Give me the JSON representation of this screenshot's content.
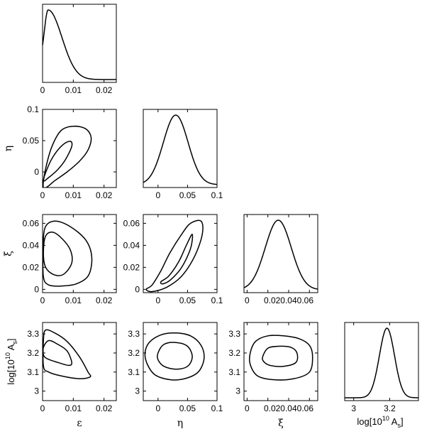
{
  "chart_data": {
    "type": "corner_plot",
    "params": [
      {
        "key": "eps",
        "label": "ε",
        "range": [
          0,
          0.024
        ],
        "ticks": [
          0,
          0.01,
          0.02
        ],
        "ticklabels": [
          "0",
          "0.01",
          "0.02"
        ]
      },
      {
        "key": "eta",
        "label": "η",
        "range": [
          -0.025,
          0.1
        ],
        "ticks": [
          0,
          0.05,
          0.1
        ],
        "ticklabels": [
          "0",
          "0.05",
          "0.1"
        ]
      },
      {
        "key": "xi",
        "label": "ξ",
        "range": [
          -0.003,
          0.068
        ],
        "ticks": [
          0,
          0.02,
          0.04,
          0.06
        ],
        "ticklabels": [
          "0",
          "0.02",
          "0.04",
          "0.06"
        ]
      },
      {
        "key": "lnA",
        "label_main": "log[10",
        "label_sup": "10",
        "label_mid": " A",
        "label_sub": "s",
        "label_end": "]",
        "range": [
          2.95,
          3.36
        ],
        "ticks": [
          3,
          3.1,
          3.2,
          3.3
        ],
        "ticklabels": [
          "3",
          "3.1",
          "3.2",
          "3.3"
        ],
        "xticks": [
          3,
          3.2
        ],
        "xticklabels": [
          "3",
          "3.2"
        ]
      }
    ],
    "x_tick_strings": {
      "xi": "0.020.040.06"
    },
    "marginals": [
      {
        "param": "eps",
        "shape": "skewed",
        "peak": 0.0018,
        "width_left": 0.0012,
        "width_right": 0.0045
      },
      {
        "param": "eta",
        "shape": "gaussian",
        "peak": 0.03,
        "sigma": 0.021
      },
      {
        "param": "xi",
        "shape": "gaussian",
        "peak": 0.03,
        "sigma": 0.0125
      },
      {
        "param": "lnA",
        "shape": "gaussian",
        "peak": 3.185,
        "sigma": 0.042
      }
    ],
    "contours": [
      {
        "x": "eps",
        "y": "eta",
        "levels": [
          [
            [
              0.0003,
              -0.014
            ],
            [
              0.0015,
              0.005
            ],
            [
              0.0035,
              0.025
            ],
            [
              0.0065,
              0.043
            ],
            [
              0.009,
              0.049
            ],
            [
              0.0095,
              0.041
            ],
            [
              0.0075,
              0.02
            ],
            [
              0.005,
              0.004
            ],
            [
              0.002,
              -0.009
            ]
          ],
          [
            [
              0.0002,
              -0.024
            ],
            [
              0.001,
              0.005
            ],
            [
              0.003,
              0.04
            ],
            [
              0.006,
              0.066
            ],
            [
              0.01,
              0.073
            ],
            [
              0.014,
              0.069
            ],
            [
              0.0158,
              0.055
            ],
            [
              0.0148,
              0.035
            ],
            [
              0.012,
              0.017
            ],
            [
              0.008,
              0.0
            ],
            [
              0.004,
              -0.014
            ],
            [
              0.0015,
              -0.024
            ]
          ]
        ]
      },
      {
        "x": "eps",
        "y": "xi",
        "levels": [
          [
            [
              0.0003,
              0.03
            ],
            [
              0.0008,
              0.047
            ],
            [
              0.003,
              0.052
            ],
            [
              0.006,
              0.047
            ],
            [
              0.009,
              0.036
            ],
            [
              0.0095,
              0.024
            ],
            [
              0.007,
              0.014
            ],
            [
              0.004,
              0.013
            ],
            [
              0.0012,
              0.019
            ]
          ],
          [
            [
              0.0002,
              0.035
            ],
            [
              0.0008,
              0.056
            ],
            [
              0.004,
              0.062
            ],
            [
              0.009,
              0.057
            ],
            [
              0.014,
              0.045
            ],
            [
              0.016,
              0.03
            ],
            [
              0.015,
              0.013
            ],
            [
              0.011,
              0.005
            ],
            [
              0.006,
              0.003
            ],
            [
              0.002,
              0.004
            ],
            [
              0.0003,
              0.011
            ]
          ]
        ]
      },
      {
        "x": "eps",
        "y": "lnA",
        "levels": [
          [
            [
              0.0003,
              3.23
            ],
            [
              0.002,
              3.265
            ],
            [
              0.005,
              3.245
            ],
            [
              0.008,
              3.21
            ],
            [
              0.0095,
              3.15
            ],
            [
              0.0085,
              3.135
            ],
            [
              0.005,
              3.15
            ],
            [
              0.0015,
              3.17
            ],
            [
              0.0003,
              3.19
            ]
          ],
          [
            [
              0.0003,
              3.27
            ],
            [
              0.001,
              3.32
            ],
            [
              0.004,
              3.305
            ],
            [
              0.008,
              3.26
            ],
            [
              0.012,
              3.18
            ],
            [
              0.0148,
              3.1
            ],
            [
              0.0155,
              3.075
            ],
            [
              0.012,
              3.065
            ],
            [
              0.006,
              3.08
            ],
            [
              0.002,
              3.1
            ],
            [
              0.0003,
              3.13
            ]
          ]
        ]
      },
      {
        "x": "eta",
        "y": "xi",
        "levels": [
          [
            [
              0.005,
              0.007
            ],
            [
              0.018,
              0.012
            ],
            [
              0.035,
              0.025
            ],
            [
              0.048,
              0.04
            ],
            [
              0.058,
              0.05
            ],
            [
              0.055,
              0.037
            ],
            [
              0.04,
              0.02
            ],
            [
              0.022,
              0.009
            ],
            [
              0.008,
              0.005
            ]
          ],
          [
            [
              -0.02,
              0.0
            ],
            [
              -0.01,
              0.004
            ],
            [
              0.005,
              0.017
            ],
            [
              0.02,
              0.033
            ],
            [
              0.04,
              0.05
            ],
            [
              0.055,
              0.06
            ],
            [
              0.073,
              0.062
            ],
            [
              0.075,
              0.05
            ],
            [
              0.062,
              0.03
            ],
            [
              0.04,
              0.012
            ],
            [
              0.015,
              0.002
            ],
            [
              -0.01,
              -0.002
            ]
          ]
        ]
      },
      {
        "x": "eta",
        "y": "lnA",
        "levels": [
          [
            [
              0.0,
              3.2
            ],
            [
              0.01,
              3.245
            ],
            [
              0.03,
              3.255
            ],
            [
              0.05,
              3.235
            ],
            [
              0.058,
              3.18
            ],
            [
              0.05,
              3.13
            ],
            [
              0.03,
              3.115
            ],
            [
              0.01,
              3.13
            ],
            [
              0.0,
              3.165
            ]
          ],
          [
            [
              -0.022,
              3.2
            ],
            [
              -0.015,
              3.255
            ],
            [
              0.005,
              3.295
            ],
            [
              0.03,
              3.305
            ],
            [
              0.055,
              3.29
            ],
            [
              0.073,
              3.24
            ],
            [
              0.078,
              3.17
            ],
            [
              0.068,
              3.1
            ],
            [
              0.045,
              3.065
            ],
            [
              0.02,
              3.06
            ],
            [
              -0.005,
              3.085
            ],
            [
              -0.018,
              3.14
            ]
          ]
        ]
      },
      {
        "x": "xi",
        "y": "lnA",
        "levels": [
          [
            [
              0.015,
              3.18
            ],
            [
              0.02,
              3.225
            ],
            [
              0.03,
              3.235
            ],
            [
              0.042,
              3.23
            ],
            [
              0.048,
              3.2
            ],
            [
              0.047,
              3.15
            ],
            [
              0.035,
              3.13
            ],
            [
              0.022,
              3.135
            ],
            [
              0.016,
              3.155
            ]
          ],
          [
            [
              0.003,
              3.2
            ],
            [
              0.008,
              3.26
            ],
            [
              0.02,
              3.29
            ],
            [
              0.035,
              3.29
            ],
            [
              0.05,
              3.275
            ],
            [
              0.06,
              3.24
            ],
            [
              0.063,
              3.18
            ],
            [
              0.06,
              3.1
            ],
            [
              0.045,
              3.065
            ],
            [
              0.025,
              3.06
            ],
            [
              0.01,
              3.08
            ],
            [
              0.003,
              3.14
            ]
          ]
        ]
      }
    ]
  }
}
